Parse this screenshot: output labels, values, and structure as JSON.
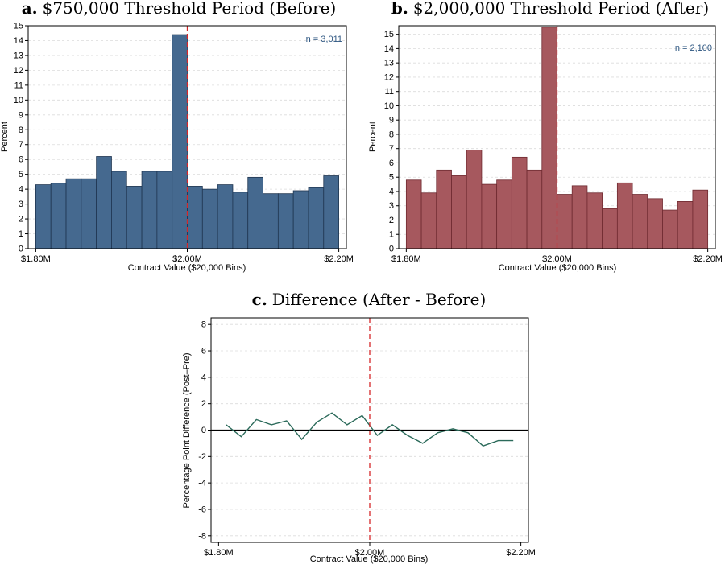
{
  "chart_data": [
    {
      "id": "a",
      "type": "bar",
      "title_letter": "a.",
      "title": "$750,000 Threshold Period (Before)",
      "xlabel": "Contract Value ($20,000 Bins)",
      "ylabel": "Percent",
      "x_tick_labels": [
        "$1.80M",
        "$2.00M",
        "$2.20M"
      ],
      "x_ticks": [
        1.8,
        2.0,
        2.2
      ],
      "xlim": [
        1.79,
        2.21
      ],
      "ylim": [
        0,
        15
      ],
      "y_ticks": [
        0,
        1,
        2,
        3,
        4,
        5,
        6,
        7,
        8,
        9,
        10,
        11,
        12,
        13,
        14,
        15
      ],
      "bin_width": 0.02,
      "bin_starts": [
        1.8,
        1.82,
        1.84,
        1.86,
        1.88,
        1.9,
        1.92,
        1.94,
        1.96,
        1.98,
        2.0,
        2.02,
        2.04,
        2.06,
        2.08,
        2.1,
        2.12,
        2.14,
        2.16,
        2.18
      ],
      "values": [
        4.3,
        4.4,
        4.7,
        4.7,
        6.2,
        5.2,
        4.2,
        5.2,
        5.2,
        14.4,
        4.2,
        4.0,
        4.3,
        3.8,
        4.8,
        3.7,
        3.7,
        3.9,
        4.1,
        4.9
      ],
      "reference_line_x": 2.0,
      "annotation": "n = 3,011",
      "bar_color": "#45698f",
      "bar_edge": "#1f3550",
      "annotation_color": "#2c5580",
      "grid": true
    },
    {
      "id": "b",
      "type": "bar",
      "title_letter": "b.",
      "title": "$2,000,000 Threshold Period (After)",
      "xlabel": "Contract Value ($20,000 Bins)",
      "ylabel": "Percent",
      "x_tick_labels": [
        "$1.80M",
        "$2.00M",
        "$2.20M"
      ],
      "x_ticks": [
        1.8,
        2.0,
        2.2
      ],
      "xlim": [
        1.79,
        2.21
      ],
      "ylim": [
        0,
        15.6
      ],
      "y_ticks": [
        0,
        1,
        2,
        3,
        4,
        5,
        6,
        7,
        8,
        9,
        10,
        11,
        12,
        13,
        14,
        15
      ],
      "bin_width": 0.02,
      "bin_starts": [
        1.8,
        1.82,
        1.84,
        1.86,
        1.88,
        1.9,
        1.92,
        1.94,
        1.96,
        1.98,
        2.0,
        2.02,
        2.04,
        2.06,
        2.08,
        2.1,
        2.12,
        2.14,
        2.16,
        2.18
      ],
      "values": [
        4.8,
        3.9,
        5.5,
        5.1,
        6.9,
        4.5,
        4.8,
        6.4,
        5.5,
        15.5,
        3.8,
        4.4,
        3.9,
        2.8,
        4.6,
        3.8,
        3.5,
        2.7,
        3.3,
        4.1
      ],
      "reference_line_x": 2.0,
      "annotation": "n = 2,100",
      "bar_color": "#a6585e",
      "bar_edge": "#6e2a30",
      "annotation_color": "#2c5580",
      "grid": true
    },
    {
      "id": "c",
      "type": "line",
      "title_letter": "c.",
      "title": "Difference (After - Before)",
      "xlabel": "Contract Value ($20,000 Bins)",
      "ylabel": "Percentage Point Difference (Post–Pre)",
      "x_tick_labels": [
        "$1.80M",
        "$2.00M",
        "$2.20M"
      ],
      "x_ticks": [
        1.8,
        2.0,
        2.2
      ],
      "xlim": [
        1.79,
        2.21
      ],
      "ylim": [
        -8.5,
        8.5
      ],
      "y_ticks": [
        -8,
        -6,
        -4,
        -2,
        0,
        2,
        4,
        6,
        8
      ],
      "x": [
        1.81,
        1.83,
        1.85,
        1.87,
        1.89,
        1.91,
        1.93,
        1.95,
        1.97,
        1.99,
        2.01,
        2.03,
        2.05,
        2.07,
        2.09,
        2.11,
        2.13,
        2.15,
        2.17,
        2.19
      ],
      "values": [
        0.4,
        -0.5,
        0.8,
        0.4,
        0.7,
        -0.7,
        0.6,
        1.3,
        0.4,
        1.1,
        -0.4,
        0.4,
        -0.4,
        -1.0,
        -0.2,
        0.1,
        -0.2,
        -1.2,
        -0.8,
        -0.8
      ],
      "reference_line_x": 2.0,
      "zero_line": true,
      "line_color": "#2b6a5a",
      "grid": true
    }
  ]
}
